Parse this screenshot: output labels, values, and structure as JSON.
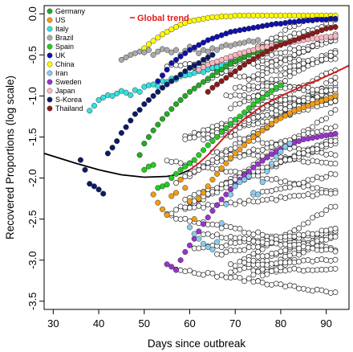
{
  "chart_data": {
    "type": "scatter",
    "title": "",
    "xlabel": "Days since outbreak",
    "ylabel": "Recovered Proportions (log scale)",
    "xlim": [
      28,
      95
    ],
    "ylim": [
      -3.6,
      0.1
    ],
    "x_ticks": [
      30,
      40,
      50,
      60,
      70,
      80,
      90
    ],
    "y_ticks": [
      0.0,
      -0.5,
      -1.0,
      -1.5,
      -2.0,
      -2.5,
      -3.0,
      -3.5
    ],
    "x_tick_labels": [
      "30",
      "40",
      "50",
      "60",
      "70",
      "80",
      "90"
    ],
    "y_tick_labels": [
      "0.0",
      "-0.5",
      "-1.0",
      "-1.5",
      "-2.0",
      "-2.5",
      "-3.0",
      "-3.5"
    ],
    "grid": false,
    "legend_position": "top-left",
    "legend": [
      {
        "name": "Germany",
        "color": "#22aa22"
      },
      {
        "name": "US",
        "color": "#f39c12"
      },
      {
        "name": "Italy",
        "color": "#33e0e0"
      },
      {
        "name": "Brazil",
        "color": "#aaaaaa"
      },
      {
        "name": "Spain",
        "color": "#22cc22"
      },
      {
        "name": "UK",
        "color": "#1010aa"
      },
      {
        "name": "China",
        "color": "#ffff00"
      },
      {
        "name": "Iran",
        "color": "#88ccee"
      },
      {
        "name": "Sweden",
        "color": "#9933cc"
      },
      {
        "name": "Japan",
        "color": "#ffb6c1"
      },
      {
        "name": "S-Korea",
        "color": "#0a1a6a"
      },
      {
        "name": "Thailand",
        "color": "#8b1a1a"
      }
    ],
    "trend_label": "Global trend",
    "trend_color": "#e31a1c",
    "trend_curve": {
      "x": [
        28,
        35,
        40,
        45,
        50,
        55,
        58,
        60,
        62,
        64,
        66,
        68,
        70,
        72,
        74,
        76,
        78,
        80,
        82,
        84,
        86,
        88,
        90,
        92,
        95
      ],
      "y": [
        -1.7,
        -1.82,
        -1.9,
        -1.96,
        -1.99,
        -1.98,
        -1.95,
        -1.9,
        -1.82,
        -1.72,
        -1.6,
        -1.48,
        -1.38,
        -1.28,
        -1.2,
        -1.12,
        -1.06,
        -1.0,
        -0.95,
        -0.9,
        -0.85,
        -0.81,
        -0.76,
        -0.71,
        -0.63
      ]
    },
    "series": [
      {
        "name": "China",
        "x": [
          50,
          51,
          52,
          53,
          54,
          55,
          56,
          57,
          58,
          59,
          60,
          61,
          62,
          63,
          64,
          65,
          66,
          67,
          68,
          69,
          70,
          71,
          72,
          73,
          74,
          75,
          76,
          77,
          78,
          79,
          80,
          81,
          82,
          83,
          84,
          85,
          86,
          87,
          88,
          89,
          90,
          91,
          92
        ],
        "y": [
          -0.42,
          -0.37,
          -0.33,
          -0.29,
          -0.25,
          -0.22,
          -0.19,
          -0.16,
          -0.13,
          -0.11,
          -0.09,
          -0.08,
          -0.07,
          -0.06,
          -0.05,
          -0.04,
          -0.04,
          -0.03,
          -0.03,
          -0.03,
          -0.02,
          -0.02,
          -0.02,
          -0.02,
          -0.02,
          -0.02,
          -0.02,
          -0.02,
          -0.02,
          -0.02,
          -0.02,
          -0.02,
          -0.02,
          -0.02,
          -0.02,
          -0.02,
          -0.02,
          -0.02,
          -0.02,
          -0.02,
          -0.02,
          -0.02,
          -0.02
        ]
      },
      {
        "name": "Italy",
        "x": [
          38,
          39,
          40,
          41,
          42,
          43,
          44,
          45,
          46,
          47,
          48,
          49,
          50,
          51,
          52,
          53,
          54,
          55,
          56,
          57,
          58,
          59,
          60,
          61,
          62,
          63,
          64,
          65,
          66,
          67,
          68,
          69,
          70
        ],
        "y": [
          -1.18,
          -1.12,
          -1.05,
          -1.02,
          -0.99,
          -1.0,
          -0.97,
          -0.94,
          -0.96,
          -0.99,
          -0.93,
          -0.95,
          -0.89,
          -0.87,
          -0.86,
          -0.88,
          -0.82,
          -0.83,
          -0.79,
          -0.8,
          -0.76,
          -0.75,
          -0.74,
          -0.72,
          -0.7,
          -0.71,
          -0.68,
          -0.66,
          -0.65,
          -0.63,
          -0.62,
          -0.6,
          -0.58
        ]
      },
      {
        "name": "Brazil",
        "x": [
          45,
          46,
          47,
          48,
          49,
          50,
          51,
          52,
          53,
          54,
          55,
          56,
          57,
          58,
          59,
          60,
          61,
          62,
          63,
          64,
          65,
          66,
          67,
          68,
          69,
          70,
          71,
          72,
          73,
          74,
          75
        ],
        "y": [
          -0.56,
          -0.53,
          -0.5,
          -0.48,
          -0.46,
          -0.47,
          -0.44,
          -0.5,
          -0.46,
          -0.43,
          -0.44,
          -0.47,
          -0.44,
          -0.5,
          -0.45,
          -0.4,
          -0.43,
          -0.48,
          -0.44,
          -0.46,
          -0.42,
          -0.44,
          -0.4,
          -0.38,
          -0.39,
          -0.37,
          -0.36,
          -0.35,
          -0.33,
          -0.34,
          -0.32
        ]
      },
      {
        "name": "UK",
        "x": [
          53,
          54,
          55,
          56,
          57,
          58,
          59,
          60,
          61,
          62,
          63,
          64,
          65,
          66,
          67,
          68,
          69,
          70,
          71,
          72,
          73,
          74,
          75,
          76,
          77,
          78,
          79,
          80,
          81,
          82,
          83,
          84,
          85,
          86,
          87,
          88,
          89,
          90,
          91,
          92
        ],
        "y": [
          -0.82,
          -0.75,
          -0.68,
          -0.6,
          -0.56,
          -0.52,
          -0.48,
          -0.44,
          -0.41,
          -0.38,
          -0.35,
          -0.32,
          -0.3,
          -0.28,
          -0.26,
          -0.24,
          -0.22,
          -0.21,
          -0.2,
          -0.19,
          -0.18,
          -0.17,
          -0.16,
          -0.15,
          -0.14,
          -0.13,
          -0.12,
          -0.12,
          -0.11,
          -0.1,
          -0.1,
          -0.09,
          -0.09,
          -0.08,
          -0.08,
          -0.07,
          -0.07,
          -0.07,
          -0.06,
          -0.06
        ]
      },
      {
        "name": "S-Korea",
        "x": [
          36,
          37,
          38,
          39,
          40,
          41,
          42,
          43,
          44,
          45,
          46,
          47,
          48,
          49,
          50,
          51,
          52,
          53,
          54,
          55,
          56,
          57,
          58,
          59,
          60,
          61,
          62,
          63,
          64,
          65
        ],
        "y": [
          -1.78,
          -1.9,
          -2.07,
          -2.1,
          -2.14,
          -2.19,
          -1.7,
          -1.63,
          -1.55,
          -1.45,
          -1.38,
          -1.3,
          -1.22,
          -1.17,
          -1.1,
          -1.05,
          -1.0,
          -0.95,
          -0.9,
          -0.86,
          -0.82,
          -0.78,
          -0.74,
          -0.7,
          -0.66,
          -0.63,
          -0.6,
          -0.56,
          -0.53,
          -0.5
        ]
      },
      {
        "name": "Germany",
        "x": [
          49,
          50,
          51,
          52,
          53,
          54,
          55,
          56,
          57,
          58,
          59,
          60,
          61,
          62,
          63,
          64,
          65,
          66,
          67,
          68,
          69,
          70,
          71,
          72,
          73,
          74,
          75,
          76,
          77,
          78,
          79,
          80
        ],
        "y": [
          -1.72,
          -1.58,
          -1.5,
          -1.42,
          -1.35,
          -1.28,
          -1.22,
          -1.16,
          -1.1,
          -1.05,
          -1.0,
          -0.95,
          -0.91,
          -0.87,
          -0.83,
          -0.79,
          -0.75,
          -0.71,
          -0.68,
          -0.64,
          -0.61,
          -0.58,
          -0.55,
          -0.52,
          -0.5,
          -0.47,
          -0.45,
          -0.43,
          -0.41,
          -0.39,
          -0.37,
          -0.35
        ]
      },
      {
        "name": "Spain",
        "x": [
          50,
          51,
          52,
          53,
          54,
          55,
          56,
          57,
          58,
          59,
          60,
          61,
          62,
          63,
          64,
          65,
          66,
          67,
          68,
          69,
          70,
          71,
          72,
          73,
          74,
          75,
          76,
          77,
          78,
          79,
          80
        ],
        "y": [
          -1.9,
          -1.86,
          -1.84,
          -2.12,
          -2.1,
          -2.08,
          -2.0,
          -1.95,
          -1.9,
          -1.86,
          -1.82,
          -1.78,
          -1.72,
          -1.66,
          -1.6,
          -1.55,
          -1.5,
          -1.44,
          -1.39,
          -1.34,
          -1.29,
          -1.25,
          -1.2,
          -1.15,
          -1.1,
          -1.06,
          -1.02,
          -0.98,
          -0.94,
          -0.9,
          -0.87
        ]
      },
      {
        "name": "US",
        "x": [
          52,
          53,
          54,
          55,
          56,
          57,
          58,
          59,
          60,
          61,
          62,
          63,
          64,
          65,
          66,
          67,
          68,
          69,
          70,
          71,
          72,
          73,
          74,
          75,
          76,
          77,
          78,
          79,
          80,
          81,
          82,
          83,
          84,
          85,
          86,
          87,
          88,
          89,
          90,
          91,
          92
        ],
        "y": [
          -2.2,
          -2.3,
          -2.38,
          -2.45,
          -2.22,
          -2.18,
          -2.02,
          -2.12,
          -2.28,
          -2.5,
          -2.25,
          -2.18,
          -2.1,
          -2.02,
          -1.95,
          -1.88,
          -1.82,
          -1.76,
          -1.7,
          -1.65,
          -1.6,
          -1.55,
          -1.5,
          -1.46,
          -1.42,
          -1.38,
          -1.34,
          -1.3,
          -1.27,
          -1.24,
          -1.21,
          -1.18,
          -1.16,
          -1.14,
          -1.12,
          -1.1,
          -1.08,
          -1.06,
          -1.04,
          -1.02,
          -1.0
        ]
      },
      {
        "name": "Sweden",
        "x": [
          55,
          56,
          57,
          58,
          59,
          60,
          61,
          62,
          63,
          64,
          65,
          66,
          67,
          68,
          69,
          70,
          71,
          72,
          73,
          74,
          75,
          76,
          77,
          78,
          79,
          80,
          81,
          82,
          83,
          84,
          85,
          86,
          87,
          88,
          89,
          90,
          91,
          92
        ],
        "y": [
          -3.05,
          -3.08,
          -3.12,
          -3.0,
          -2.9,
          -2.82,
          -2.74,
          -2.65,
          -2.56,
          -2.48,
          -2.4,
          -2.33,
          -2.26,
          -2.2,
          -2.14,
          -2.08,
          -2.02,
          -1.97,
          -1.92,
          -1.87,
          -1.83,
          -1.79,
          -1.75,
          -1.71,
          -1.68,
          -1.65,
          -1.62,
          -1.59,
          -1.57,
          -1.55,
          -1.53,
          -1.52,
          -1.51,
          -1.5,
          -1.49,
          -1.48,
          -1.47,
          -1.46
        ]
      },
      {
        "name": "Iran",
        "x": [
          60,
          61,
          62,
          63,
          64,
          65,
          66,
          67,
          68,
          69,
          70,
          71,
          72,
          73,
          74,
          75,
          76,
          77,
          78,
          79,
          80,
          81,
          82
        ],
        "y": [
          -2.6,
          -2.68,
          -2.74,
          -2.8,
          -2.84,
          -2.87,
          -2.78,
          -2.55,
          -2.32,
          -2.2,
          -2.1,
          -2.05,
          -2.02,
          -1.98,
          -2.18,
          -2.2,
          -2.05,
          -1.92,
          -1.82,
          -1.74,
          -1.68,
          -1.62,
          -1.58
        ]
      },
      {
        "name": "Japan",
        "x": [
          62,
          63,
          64,
          65,
          66,
          67,
          68,
          69,
          70,
          71,
          72,
          73,
          74,
          75,
          76,
          77,
          78,
          79,
          80,
          81,
          82,
          83,
          84,
          85,
          86,
          87,
          88,
          89,
          90,
          91,
          92
        ],
        "y": [
          -0.68,
          -0.65,
          -0.62,
          -0.6,
          -0.58,
          -0.56,
          -0.54,
          -0.52,
          -0.5,
          -0.48,
          -0.47,
          -0.45,
          -0.44,
          -0.42,
          -0.41,
          -0.4,
          -0.39,
          -0.38,
          -0.37,
          -0.36,
          -0.35,
          -0.34,
          -0.33,
          -0.32,
          -0.31,
          -0.3,
          -0.3,
          -0.29,
          -0.28,
          -0.28,
          -0.27
        ]
      },
      {
        "name": "Thailand",
        "x": [
          64,
          65,
          66,
          67,
          68,
          69,
          70,
          71,
          72,
          73,
          74,
          75,
          76,
          77,
          78,
          79,
          80,
          81,
          82,
          83,
          84,
          85,
          86,
          87,
          88,
          89,
          90,
          91,
          92
        ],
        "y": [
          -0.95,
          -0.9,
          -0.86,
          -0.82,
          -0.78,
          -0.74,
          -0.7,
          -0.66,
          -0.62,
          -0.58,
          -0.55,
          -0.52,
          -0.49,
          -0.46,
          -0.43,
          -0.4,
          -0.38,
          -0.36,
          -0.34,
          -0.32,
          -0.3,
          -0.28,
          -0.26,
          -0.24,
          -0.22,
          -0.2,
          -0.18,
          -0.17,
          -0.16
        ]
      }
    ]
  }
}
